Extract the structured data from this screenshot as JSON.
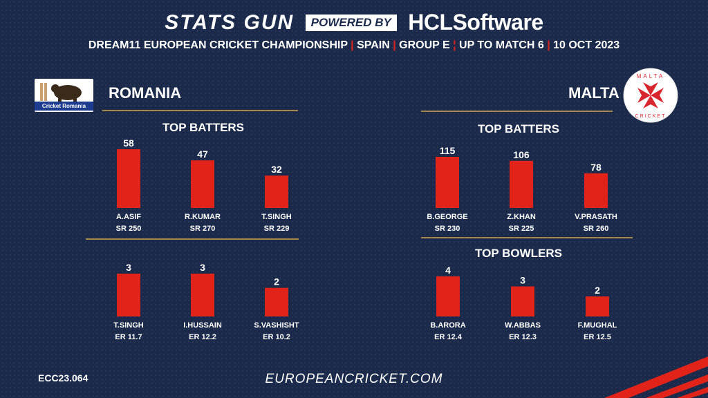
{
  "header": {
    "stats_gun": "STATS GUN",
    "powered_by": "POWERED BY",
    "sponsor": "HCLSoftware"
  },
  "subtitle": {
    "parts": [
      "DREAM11 EUROPEAN CRICKET CHAMPIONSHIP",
      "SPAIN",
      "GROUP E",
      "UP TO MATCH 6",
      "10 OCT 2023"
    ]
  },
  "teams": {
    "left": {
      "name": "ROMANIA",
      "logo_text": "Cricket Romania"
    },
    "right": {
      "name": "MALTA",
      "logo_text_top": "MALTA",
      "logo_text_bottom": "CRICKET"
    }
  },
  "colors": {
    "bar": "#e2231a",
    "gold": "#a8884a",
    "background": "#1b2a4a"
  },
  "footer": {
    "code": "ECC23.064",
    "website": "EUROPEANCRICKET.COM"
  },
  "chart_data": [
    {
      "type": "bar",
      "panel": "romania-batters",
      "title": "TOP BATTERS",
      "categories": [
        "A.ASIF",
        "R.KUMAR",
        "T.SINGH"
      ],
      "values": [
        58,
        47,
        32
      ],
      "sublabels": [
        "SR 250",
        "SR 270",
        "SR 229"
      ]
    },
    {
      "type": "bar",
      "panel": "romania-bowlers",
      "title": "",
      "categories": [
        "T.SINGH",
        "I.HUSSAIN",
        "S.VASHISHT"
      ],
      "values": [
        3,
        3,
        2
      ],
      "sublabels": [
        "ER 11.7",
        "ER 12.2",
        "ER 10.2"
      ]
    },
    {
      "type": "bar",
      "panel": "malta-batters",
      "title": "TOP BATTERS",
      "categories": [
        "B.GEORGE",
        "Z.KHAN",
        "V.PRASATH"
      ],
      "values": [
        115,
        106,
        78
      ],
      "sublabels": [
        "SR 230",
        "SR 225",
        "SR 260"
      ]
    },
    {
      "type": "bar",
      "panel": "malta-bowlers",
      "title": "TOP BOWLERS",
      "categories": [
        "B.ARORA",
        "W.ABBAS",
        "F.MUGHAL"
      ],
      "values": [
        4,
        3,
        2
      ],
      "sublabels": [
        "ER 12.4",
        "ER 12.3",
        "ER 12.5"
      ]
    }
  ]
}
